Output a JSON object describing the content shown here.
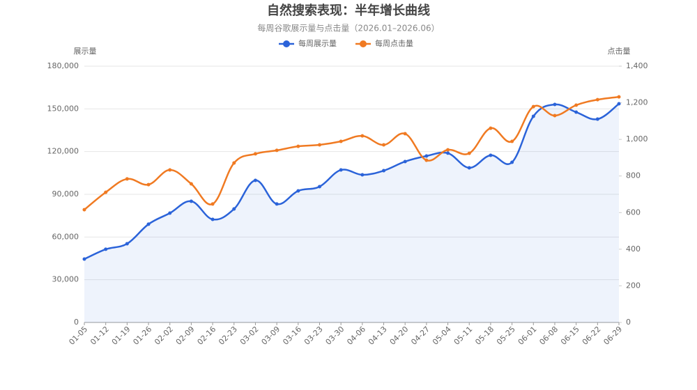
{
  "chart_data": {
    "type": "line",
    "title": "自然搜索表现：半年增长曲线",
    "subtitle": "每周谷歌展示量与点击量（2026.01–2026.06）",
    "y_label": "展示量",
    "y2_label": "点击量",
    "categories": [
      "01-05",
      "01-12",
      "01-19",
      "01-26",
      "02-02",
      "02-09",
      "02-16",
      "02-23",
      "03-02",
      "03-09",
      "03-16",
      "03-23",
      "03-30",
      "04-06",
      "04-13",
      "04-20",
      "04-27",
      "05-04",
      "05-11",
      "05-18",
      "05-25",
      "06-01",
      "06-08",
      "06-15",
      "06-22",
      "06-29"
    ],
    "series": [
      {
        "name": "每周展示量",
        "color": "#2b63d9",
        "area": true,
        "values": [
          44500,
          51400,
          55300,
          69000,
          76800,
          85100,
          72400,
          79700,
          99800,
          83200,
          92400,
          95400,
          107100,
          103700,
          106600,
          113000,
          116900,
          118900,
          108600,
          117400,
          112500,
          144800,
          153100,
          147700,
          142800,
          153600
        ]
      },
      {
        "name": "每周点击量",
        "color": "#f07a22",
        "axis": "y2",
        "values": [
          616,
          711,
          784,
          753,
          833,
          757,
          647,
          871,
          921,
          940,
          962,
          970,
          989,
          1019,
          970,
          1031,
          886,
          943,
          924,
          1061,
          989,
          1179,
          1130,
          1187,
          1217,
          1232
        ]
      }
    ],
    "ylim": [
      0,
      180000
    ],
    "yticks": [
      0,
      {
        "value": 30000,
        "label": "30,000"
      },
      {
        "value": 60000,
        "label": "60,000"
      },
      {
        "value": 90000,
        "label": "90,000"
      },
      {
        "value": 120000,
        "label": "120,000"
      },
      {
        "value": 150000,
        "label": "150,000"
      },
      {
        "value": 180000,
        "label": "180,000"
      }
    ],
    "y2lim": [
      0,
      1400
    ],
    "y2ticks": [
      0,
      200,
      400,
      600,
      800,
      {
        "value": 1000,
        "label": "1,000"
      },
      {
        "value": 1200,
        "label": "1,200"
      },
      {
        "value": 1400,
        "label": "1,400"
      }
    ],
    "grid": true,
    "legend": "top"
  }
}
